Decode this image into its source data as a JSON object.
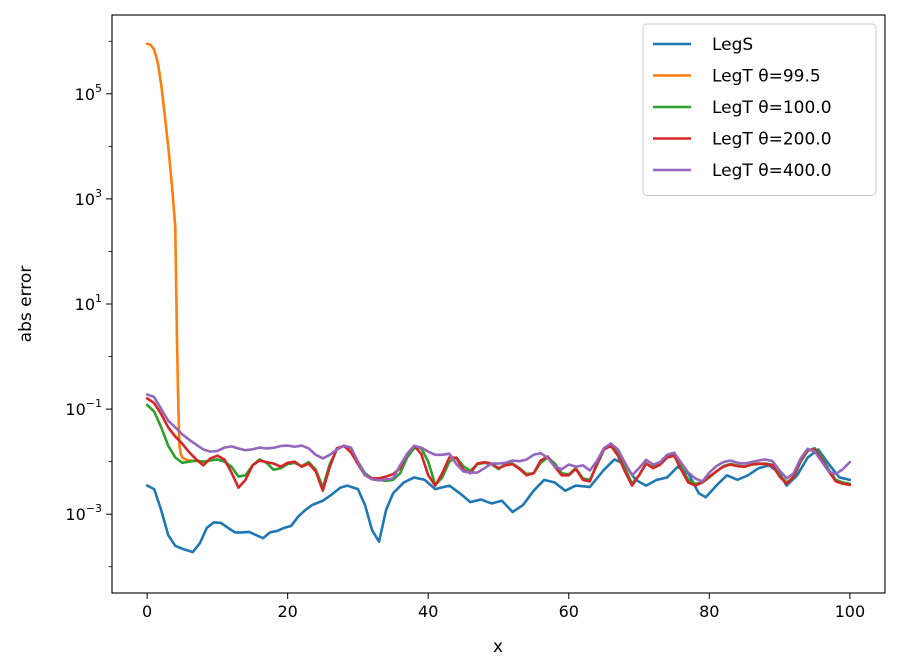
{
  "chart_data": {
    "type": "line",
    "xlabel": "x",
    "ylabel": "abs error",
    "yscale": "log",
    "xlim": [
      -5,
      105
    ],
    "ylim_log10": [
      -4.5,
      6.5
    ],
    "xticks": [
      {
        "value": 0,
        "label": "0"
      },
      {
        "value": 20,
        "label": "20"
      },
      {
        "value": 40,
        "label": "40"
      },
      {
        "value": 60,
        "label": "60"
      },
      {
        "value": 80,
        "label": "80"
      },
      {
        "value": 100,
        "label": "100"
      }
    ],
    "yticks": [
      {
        "exp": -3,
        "base": "10",
        "sup": "−3"
      },
      {
        "exp": -1,
        "base": "10",
        "sup": "−1"
      },
      {
        "exp": 1,
        "base": "10",
        "sup": "1"
      },
      {
        "exp": 3,
        "base": "10",
        "sup": "3"
      },
      {
        "exp": 5,
        "base": "10",
        "sup": "5"
      }
    ],
    "legend_position": "top-right",
    "grid": false,
    "series": [
      {
        "name": "LegS",
        "color": "#1f77b4",
        "x": [
          0,
          1,
          2,
          3,
          4,
          5,
          6.5,
          7.5,
          8.5,
          9.5,
          10.5,
          11.5,
          12.5,
          13.5,
          14.5,
          15.5,
          16.5,
          17.5,
          18.5,
          19.5,
          20.5,
          21.5,
          22.5,
          23.5,
          25,
          26.5,
          27.5,
          28.5,
          30,
          31,
          32,
          33,
          34,
          35,
          36.5,
          38,
          39.5,
          41,
          43,
          44.5,
          46,
          47.5,
          49,
          50.5,
          52,
          53.5,
          55,
          56.5,
          58,
          59.5,
          61,
          63,
          65,
          66.5,
          68,
          69.5,
          71,
          72.5,
          74,
          75.5,
          77,
          78.5,
          79.5,
          81,
          82.5,
          84,
          85.5,
          87,
          88.5,
          90,
          91,
          92.5,
          94,
          95.5,
          97,
          98.5,
          100
        ],
        "y": [
          0.0035,
          0.003,
          0.0012,
          0.0004,
          0.00025,
          0.00022,
          0.00019,
          0.00028,
          0.00055,
          0.0007,
          0.00068,
          0.00055,
          0.00045,
          0.00045,
          0.00046,
          0.0004,
          0.00035,
          0.00045,
          0.00048,
          0.00055,
          0.0006,
          0.0009,
          0.0012,
          0.0015,
          0.0018,
          0.0025,
          0.0032,
          0.0035,
          0.003,
          0.0015,
          0.0005,
          0.0003,
          0.0012,
          0.0025,
          0.004,
          0.005,
          0.0045,
          0.003,
          0.0035,
          0.0025,
          0.0017,
          0.0019,
          0.0016,
          0.0018,
          0.0011,
          0.0015,
          0.0028,
          0.0045,
          0.004,
          0.0028,
          0.0035,
          0.0033,
          0.007,
          0.011,
          0.009,
          0.0045,
          0.0035,
          0.0045,
          0.005,
          0.008,
          0.006,
          0.0025,
          0.0021,
          0.0035,
          0.0055,
          0.0045,
          0.0055,
          0.0075,
          0.0085,
          0.006,
          0.0035,
          0.0055,
          0.012,
          0.017,
          0.009,
          0.005,
          0.0045
        ]
      },
      {
        "name": "LegT θ=99.5",
        "color": "#ff7f0e",
        "x": [
          0,
          0.5,
          1,
          1.5,
          2,
          2.5,
          3,
          3.5,
          4,
          4.25,
          4.4,
          4.5,
          4.55,
          4.6,
          4.8,
          5,
          5.5,
          6,
          7,
          8
        ],
        "y": [
          900000,
          850000,
          700000,
          400000,
          150000,
          40000,
          10000,
          2000,
          300,
          2,
          0.2,
          0.06,
          0.03,
          0.02,
          0.014,
          0.012,
          0.011,
          0.0105,
          0.0102,
          0.01
        ]
      },
      {
        "name": "LegT θ=100.0",
        "color": "#2ca02c",
        "x": [
          0,
          1,
          2,
          3,
          4,
          5,
          6,
          7,
          8,
          9,
          10,
          11,
          12,
          13,
          14,
          15,
          16,
          17,
          18,
          19,
          20,
          21,
          22,
          23,
          24,
          25,
          26,
          27,
          28,
          29,
          30,
          31,
          32,
          33,
          34,
          35,
          36,
          37,
          38,
          39,
          40,
          41,
          42,
          43,
          44,
          45,
          46,
          47,
          48,
          49,
          50,
          51,
          52,
          53,
          54,
          55,
          56,
          57,
          58,
          59,
          60,
          61,
          62,
          63,
          64,
          65,
          66,
          67,
          68,
          69,
          70,
          71,
          72,
          73,
          74,
          75,
          76,
          77,
          78,
          79,
          80,
          81,
          82,
          83,
          84,
          85,
          86,
          87,
          88,
          89,
          90,
          91,
          92,
          93,
          94,
          95,
          96,
          97,
          98,
          99,
          100
        ],
        "y": [
          0.12,
          0.09,
          0.045,
          0.02,
          0.012,
          0.0095,
          0.01,
          0.0105,
          0.01,
          0.0105,
          0.011,
          0.01,
          0.008,
          0.0052,
          0.0055,
          0.0085,
          0.011,
          0.0095,
          0.007,
          0.0075,
          0.009,
          0.0095,
          0.0082,
          0.0098,
          0.007,
          0.0032,
          0.009,
          0.017,
          0.02,
          0.018,
          0.01,
          0.006,
          0.0048,
          0.0045,
          0.0043,
          0.0045,
          0.006,
          0.012,
          0.018,
          0.018,
          0.01,
          0.0036,
          0.005,
          0.01,
          0.012,
          0.0082,
          0.0067,
          0.009,
          0.0095,
          0.009,
          0.0072,
          0.009,
          0.0092,
          0.0075,
          0.0058,
          0.006,
          0.0095,
          0.012,
          0.0092,
          0.006,
          0.0057,
          0.0075,
          0.0048,
          0.0045,
          0.0085,
          0.017,
          0.022,
          0.014,
          0.0075,
          0.0038,
          0.0055,
          0.0092,
          0.0078,
          0.009,
          0.012,
          0.014,
          0.008,
          0.0045,
          0.0038,
          0.004,
          0.005,
          0.0065,
          0.0082,
          0.009,
          0.0085,
          0.008,
          0.0088,
          0.009,
          0.0092,
          0.0087,
          0.0055,
          0.004,
          0.005,
          0.01,
          0.016,
          0.018,
          0.012,
          0.007,
          0.0045,
          0.004,
          0.0038
        ]
      },
      {
        "name": "LegT θ=200.0",
        "color": "#d62728",
        "x": [
          0,
          1,
          2,
          3,
          4,
          5,
          6,
          7,
          8,
          9,
          10,
          11,
          12,
          13,
          14,
          15,
          16,
          17,
          18,
          19,
          20,
          21,
          22,
          23,
          24,
          25,
          26,
          27,
          28,
          29,
          30,
          31,
          32,
          33,
          34,
          35,
          36,
          37,
          38,
          39,
          40,
          41,
          42,
          43,
          44,
          45,
          46,
          47,
          48,
          49,
          50,
          51,
          52,
          53,
          54,
          55,
          56,
          57,
          58,
          59,
          60,
          61,
          62,
          63,
          64,
          65,
          66,
          67,
          68,
          69,
          70,
          71,
          72,
          73,
          74,
          75,
          76,
          77,
          78,
          79,
          80,
          81,
          82,
          83,
          84,
          85,
          86,
          87,
          88,
          89,
          90,
          91,
          92,
          93,
          94,
          95,
          96,
          97,
          98,
          99,
          100
        ],
        "y": [
          0.16,
          0.13,
          0.08,
          0.045,
          0.03,
          0.022,
          0.015,
          0.011,
          0.0085,
          0.0115,
          0.013,
          0.011,
          0.0062,
          0.0032,
          0.0045,
          0.0085,
          0.0105,
          0.0098,
          0.0092,
          0.008,
          0.0095,
          0.01,
          0.008,
          0.0092,
          0.0065,
          0.0028,
          0.008,
          0.018,
          0.02,
          0.015,
          0.009,
          0.0055,
          0.0048,
          0.0048,
          0.0052,
          0.0058,
          0.0075,
          0.014,
          0.02,
          0.014,
          0.0055,
          0.0035,
          0.006,
          0.012,
          0.0118,
          0.007,
          0.006,
          0.0092,
          0.0098,
          0.0092,
          0.0075,
          0.0085,
          0.009,
          0.0072,
          0.0055,
          0.006,
          0.0105,
          0.0125,
          0.008,
          0.0055,
          0.0055,
          0.0073,
          0.0045,
          0.0042,
          0.009,
          0.017,
          0.02,
          0.013,
          0.0065,
          0.0035,
          0.0055,
          0.0092,
          0.0075,
          0.0088,
          0.012,
          0.013,
          0.007,
          0.004,
          0.0035,
          0.004,
          0.0052,
          0.0065,
          0.008,
          0.0088,
          0.0082,
          0.008,
          0.0088,
          0.0092,
          0.009,
          0.0085,
          0.0052,
          0.0038,
          0.0052,
          0.0105,
          0.0165,
          0.017,
          0.011,
          0.0065,
          0.0042,
          0.0038,
          0.0036
        ]
      },
      {
        "name": "LegT θ=400.0",
        "color": "#9467bd",
        "x": [
          0,
          1,
          2,
          3,
          4,
          5,
          6,
          7,
          8,
          9,
          10,
          11,
          12,
          13,
          14,
          15,
          16,
          17,
          18,
          19,
          20,
          21,
          22,
          23,
          24,
          25,
          26,
          27,
          28,
          29,
          30,
          31,
          32,
          33,
          34,
          35,
          36,
          37,
          38,
          39,
          40,
          41,
          42,
          43,
          44,
          45,
          46,
          47,
          48,
          49,
          50,
          51,
          52,
          53,
          54,
          55,
          56,
          57,
          58,
          59,
          60,
          61,
          62,
          63,
          64,
          65,
          66,
          67,
          68,
          69,
          70,
          71,
          72,
          73,
          74,
          75,
          76,
          77,
          78,
          79,
          80,
          81,
          82,
          83,
          84,
          85,
          86,
          87,
          88,
          89,
          90,
          91,
          92,
          93,
          94,
          95,
          96,
          97,
          98,
          99,
          100
        ],
        "y": [
          0.19,
          0.17,
          0.1,
          0.06,
          0.045,
          0.033,
          0.026,
          0.021,
          0.017,
          0.0155,
          0.016,
          0.0185,
          0.0195,
          0.0178,
          0.0165,
          0.0172,
          0.0185,
          0.0178,
          0.0183,
          0.0198,
          0.0202,
          0.0192,
          0.0202,
          0.0178,
          0.0135,
          0.0115,
          0.0135,
          0.017,
          0.0202,
          0.0185,
          0.01,
          0.0055,
          0.0046,
          0.0044,
          0.0046,
          0.0048,
          0.0085,
          0.014,
          0.02,
          0.0185,
          0.0155,
          0.0135,
          0.0135,
          0.0142,
          0.009,
          0.0065,
          0.0062,
          0.0062,
          0.0075,
          0.0092,
          0.0092,
          0.0095,
          0.0105,
          0.0102,
          0.011,
          0.0135,
          0.0145,
          0.0118,
          0.008,
          0.0072,
          0.0088,
          0.008,
          0.0085,
          0.0068,
          0.0102,
          0.018,
          0.022,
          0.017,
          0.0095,
          0.0055,
          0.0075,
          0.0108,
          0.0088,
          0.0098,
          0.0135,
          0.0148,
          0.0095,
          0.0062,
          0.0048,
          0.0042,
          0.0062,
          0.0082,
          0.0098,
          0.0105,
          0.0095,
          0.0092,
          0.0098,
          0.0105,
          0.011,
          0.0102,
          0.0068,
          0.0048,
          0.006,
          0.0115,
          0.0175,
          0.0155,
          0.01,
          0.0065,
          0.0058,
          0.0072,
          0.0098
        ]
      }
    ]
  }
}
